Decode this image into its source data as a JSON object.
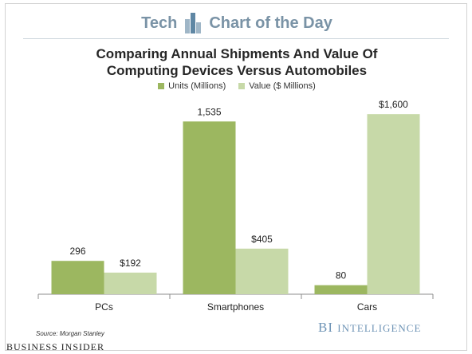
{
  "header": {
    "left": "Tech",
    "right": "Chart of the Day",
    "accent_color": "#7a93a6"
  },
  "chart_data": {
    "type": "bar",
    "title": "Comparing Annual Shipments And Value Of Computing Devices Versus Automobiles",
    "title_lines": [
      "Comparing Annual Shipments And Value Of",
      "Computing Devices Versus Automobiles"
    ],
    "categories": [
      "PCs",
      "Smartphones",
      "Cars"
    ],
    "series": [
      {
        "name": "Units (Millions)",
        "color": "#9cb760",
        "values": [
          296,
          1535,
          80
        ],
        "labels": [
          "296",
          "1,535",
          "80"
        ]
      },
      {
        "name": "Value ($ Millions)",
        "color": "#c7d9a8",
        "values": [
          192,
          405,
          1600
        ],
        "labels": [
          "$192",
          "$405",
          "$1,600"
        ]
      }
    ],
    "ylim": [
      0,
      1750
    ],
    "grid": false,
    "legend_position": "top-center"
  },
  "footer": {
    "source": "Source: Morgan Stanley",
    "brand_bi": "BI",
    "brand_intelligence": "Intelligence",
    "logo": "Business Insider"
  }
}
